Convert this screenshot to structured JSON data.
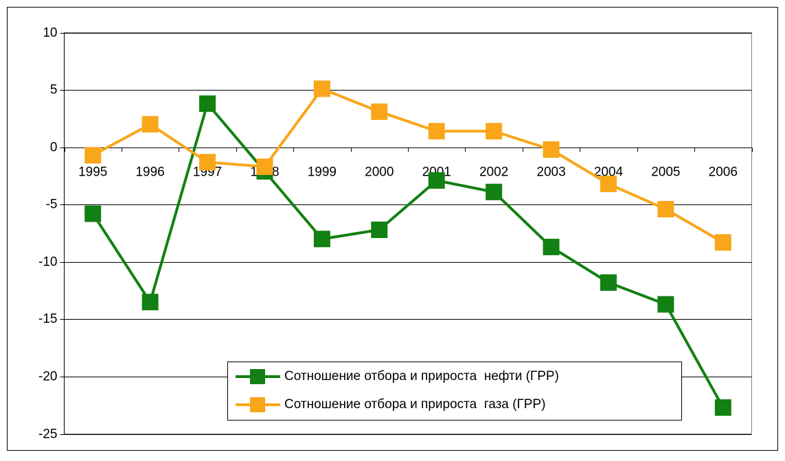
{
  "chart_data": {
    "type": "line",
    "categories": [
      "1995",
      "1996",
      "1997",
      "1998",
      "1999",
      "2000",
      "2001",
      "2002",
      "2003",
      "2004",
      "2005",
      "2006"
    ],
    "series": [
      {
        "name": "Сотношение отбора и прироста  нефти (ГРР)",
        "color": "#128012",
        "values": [
          -5.8,
          -13.5,
          3.8,
          -2.1,
          -8.0,
          -7.2,
          -2.9,
          -3.9,
          -8.7,
          -11.8,
          -13.7,
          -22.7
        ]
      },
      {
        "name": "Сотношение отбора и прироста  газа (ГРР)",
        "color": "#f9a61a",
        "values": [
          -0.7,
          2.0,
          -1.3,
          -1.7,
          5.1,
          3.1,
          1.4,
          1.4,
          -0.2,
          -3.2,
          -5.4,
          -8.3
        ]
      }
    ],
    "ylim": [
      -25,
      10
    ],
    "yticks": [
      -25,
      -20,
      -15,
      -10,
      -5,
      0,
      5,
      10
    ],
    "grid": true
  }
}
